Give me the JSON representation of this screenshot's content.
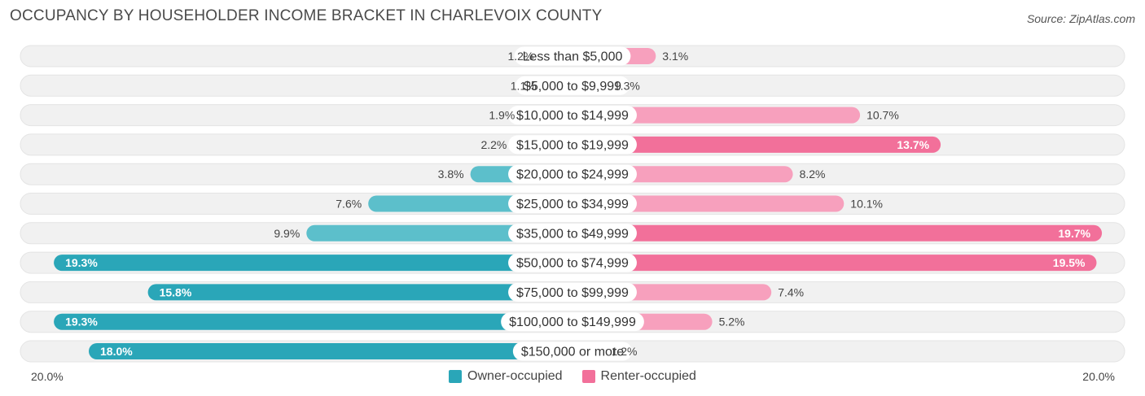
{
  "title": "OCCUPANCY BY HOUSEHOLDER INCOME BRACKET IN CHARLEVOIX COUNTY",
  "source": "Source: ZipAtlas.com",
  "colors": {
    "owner": "#5cbfcb",
    "owner_strong": "#2aa6b8",
    "renter": "#f7a0bd",
    "renter_strong": "#f2709a",
    "track": "#f1f1f1"
  },
  "chart_data": {
    "type": "bar",
    "orientation": "horizontal-diverging",
    "title": "OCCUPANCY BY HOUSEHOLDER INCOME BRACKET IN CHARLEVOIX COUNTY",
    "categories": [
      "Less than $5,000",
      "$5,000 to $9,999",
      "$10,000 to $14,999",
      "$15,000 to $19,999",
      "$20,000 to $24,999",
      "$25,000 to $34,999",
      "$35,000 to $49,999",
      "$50,000 to $74,999",
      "$75,000 to $99,999",
      "$100,000 to $149,999",
      "$150,000 or more"
    ],
    "series": [
      {
        "name": "Owner-occupied",
        "values": [
          1.2,
          1.1,
          1.9,
          2.2,
          3.8,
          7.6,
          9.9,
          19.3,
          15.8,
          19.3,
          18.0
        ],
        "labels": [
          "1.2%",
          "1.1%",
          "1.9%",
          "2.2%",
          "3.8%",
          "7.6%",
          "9.9%",
          "19.3%",
          "15.8%",
          "19.3%",
          "18.0%"
        ]
      },
      {
        "name": "Renter-occupied",
        "values": [
          3.1,
          1.3,
          10.7,
          13.7,
          8.2,
          10.1,
          19.7,
          19.5,
          7.4,
          5.2,
          1.2
        ],
        "labels": [
          "3.1%",
          "1.3%",
          "10.7%",
          "13.7%",
          "8.2%",
          "10.1%",
          "19.7%",
          "19.5%",
          "7.4%",
          "5.2%",
          "1.2%"
        ]
      }
    ],
    "xlim": [
      -20,
      20
    ],
    "axis_labels": {
      "left": "20.0%",
      "right": "20.0%"
    },
    "legend": [
      "Owner-occupied",
      "Renter-occupied"
    ],
    "legend_position": "bottom-center"
  }
}
